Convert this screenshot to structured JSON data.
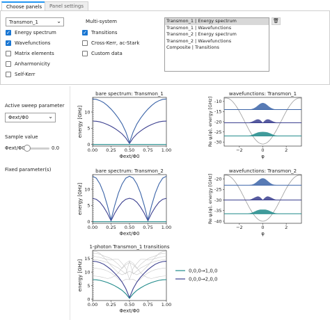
{
  "tabs": [
    {
      "label": "Choose panels"
    },
    {
      "label": "Panel settings"
    }
  ],
  "subsys_select": {
    "value": "Transmon_1"
  },
  "left_checks": [
    {
      "label": "Energy spectrum",
      "checked": true
    },
    {
      "label": "Wavefunctions",
      "checked": true
    },
    {
      "label": "Matrix elements",
      "checked": false
    },
    {
      "label": "Anharmonicity",
      "checked": false
    },
    {
      "label": "Self-Kerr",
      "checked": false
    }
  ],
  "multisystem": {
    "title": "Multi-system",
    "checks": [
      {
        "label": "Transitions",
        "checked": true
      },
      {
        "label": "Cross-Kerr, ac-Stark",
        "checked": false
      },
      {
        "label": "Custom data",
        "checked": false
      }
    ]
  },
  "panel_list": [
    "Transmon_1 | Energy spectrum",
    "Transmon_1 | Wavefunctions",
    "Transmon_2 | Energy spectrum",
    "Transmon_2 | Wavefunctions",
    "Composite | Transitions"
  ],
  "sidebar": {
    "sweep_label": "Active sweep parameter",
    "sweep_value": "Φext/Φ0",
    "sample_label": "Sample value",
    "slider_label": "Φext/Φ0",
    "slider_value": "0.0",
    "slider_fraction": 0,
    "fixed_label": "Fixed parameter(s)"
  },
  "plots": {
    "bare1": {
      "title": "bare spectrum: Transmon_1",
      "xlabel": "Φext/Φ0",
      "ylabel": "energy [GHz]"
    },
    "wave1": {
      "title": "wavefunctions: Transmon_1",
      "xlabel": "φ",
      "ylabel": "Re ψⱼ(φ),  energy [GHz]"
    },
    "bare2": {
      "title": "bare spectrum: Transmon_2",
      "xlabel": "Φext/Φ0",
      "ylabel": "energy [GHz]"
    },
    "wave2": {
      "title": "wavefunctions: Transmon_2",
      "xlabel": "φ",
      "ylabel": "Re ψⱼ(φ),  energy [GHz]"
    },
    "trans": {
      "title": "1-photon Transmon_1 transitions",
      "xlabel": "Φext/Φ0",
      "ylabel": "energy [GHz]"
    }
  },
  "legend": [
    {
      "label": "0,0,0→1,0,0",
      "color": "#1f8a8a"
    },
    {
      "label": "0,0,0→2,0,0",
      "color": "#3b3f8f"
    }
  ],
  "colors": {
    "accent": "#2196f3",
    "check": "#1976d2",
    "level0": "#1f8a8a",
    "level1": "#3b3f8f",
    "level2": "#3b64a8"
  },
  "chart_data": [
    {
      "type": "line",
      "title": "bare spectrum: Transmon_1",
      "xlabel": "Φext/Φ0",
      "ylabel": "energy [GHz]",
      "xlim": [
        0,
        1
      ],
      "ylim": [
        -0.5,
        14.5
      ],
      "xticks": [
        "0.00",
        "0.25",
        "0.50",
        "0.75",
        "1.00"
      ],
      "yticks": [
        "0",
        "5",
        "10"
      ],
      "x": [
        0,
        0.05,
        0.1,
        0.15,
        0.2,
        0.25,
        0.3,
        0.35,
        0.4,
        0.45,
        0.5,
        0.55,
        0.6,
        0.65,
        0.7,
        0.75,
        0.8,
        0.85,
        0.9,
        0.95,
        1
      ],
      "series": [
        {
          "values": [
            0,
            0,
            0,
            0,
            0,
            0,
            0,
            0,
            0,
            0,
            0,
            0,
            0,
            0,
            0,
            0,
            0,
            0,
            0,
            0,
            0
          ]
        },
        {
          "values": [
            7.2,
            7.15,
            6.95,
            6.6,
            6.15,
            5.6,
            4.95,
            4.15,
            3.25,
            2.0,
            0.3,
            2.0,
            3.25,
            4.15,
            4.95,
            5.6,
            6.15,
            6.6,
            6.95,
            7.15,
            7.2
          ]
        },
        {
          "values": [
            14.0,
            13.9,
            13.5,
            12.9,
            12.0,
            10.9,
            9.6,
            8.1,
            6.3,
            3.9,
            0.6,
            3.9,
            6.3,
            8.1,
            9.6,
            10.9,
            12.0,
            12.9,
            13.5,
            13.9,
            14.0
          ]
        }
      ]
    },
    {
      "type": "line",
      "title": "wavefunctions: Transmon_1",
      "xlabel": "φ",
      "ylabel": "Re ψⱼ(φ),  energy [GHz]",
      "xlim": [
        -3.3,
        3.3
      ],
      "ylim": [
        -32,
        -8
      ],
      "xticks": [
        "−2",
        "0",
        "2"
      ],
      "yticks": [
        "-10",
        "-15",
        "-20",
        "-25",
        "-30"
      ],
      "series": [
        {
          "name": "level 2",
          "baseline": -14
        },
        {
          "name": "level 1",
          "baseline": -20.5
        },
        {
          "name": "level 0",
          "baseline": -27
        }
      ]
    },
    {
      "type": "line",
      "title": "bare spectrum: Transmon_2",
      "xlabel": "Φext/Φ0",
      "ylabel": "energy [GHz]",
      "xlim": [
        0,
        1
      ],
      "ylim": [
        -0.5,
        14.5
      ],
      "xticks": [
        "0.00",
        "0.25",
        "0.50",
        "0.75",
        "1.00"
      ],
      "yticks": [
        "0",
        "5",
        "10"
      ],
      "x": [
        0,
        0.05,
        0.1,
        0.15,
        0.2,
        0.25,
        0.3,
        0.35,
        0.4,
        0.45,
        0.5,
        0.55,
        0.6,
        0.65,
        0.7,
        0.75,
        0.8,
        0.85,
        0.9,
        0.95,
        1
      ],
      "series": [
        {
          "values": [
            0,
            0,
            0,
            0,
            0,
            0,
            0,
            0,
            0,
            0,
            0,
            0,
            0,
            0,
            0,
            0,
            0,
            0,
            0,
            0,
            0
          ]
        },
        {
          "values": [
            7.2,
            6.9,
            6.0,
            4.5,
            2.6,
            0.3,
            2.6,
            4.5,
            6.0,
            6.9,
            7.2,
            6.9,
            6.0,
            4.5,
            2.6,
            0.3,
            2.6,
            4.5,
            6.0,
            6.9,
            7.2
          ]
        },
        {
          "values": [
            14.0,
            13.4,
            11.6,
            8.8,
            5.0,
            0.6,
            5.0,
            8.8,
            11.6,
            13.4,
            14.0,
            13.4,
            11.6,
            8.8,
            5.0,
            0.6,
            5.0,
            8.8,
            11.6,
            13.4,
            14.0
          ]
        }
      ]
    },
    {
      "type": "line",
      "title": "wavefunctions: Transmon_2",
      "xlabel": "φ",
      "ylabel": "Re ψⱼ(φ),  energy [GHz]",
      "xlim": [
        -3.3,
        3.3
      ],
      "ylim": [
        -41,
        -18
      ],
      "xticks": [
        "−2",
        "0",
        "2"
      ],
      "yticks": [
        "-20",
        "-25",
        "-30",
        "-35",
        "-40"
      ],
      "series": [
        {
          "name": "level 2",
          "baseline": -23
        },
        {
          "name": "level 1",
          "baseline": -30
        },
        {
          "name": "level 0",
          "baseline": -36.5
        }
      ]
    },
    {
      "type": "line",
      "title": "1-photon Transmon_1 transitions",
      "xlabel": "Φext/Φ0",
      "ylabel": "energy [GHz]",
      "xlim": [
        0,
        1
      ],
      "ylim": [
        -0.5,
        18
      ],
      "xticks": [
        "0.00",
        "0.25",
        "0.50",
        "0.75",
        "1.00"
      ],
      "yticks": [
        "0",
        "5",
        "10",
        "15"
      ],
      "x": [
        0,
        0.05,
        0.1,
        0.15,
        0.2,
        0.25,
        0.3,
        0.35,
        0.4,
        0.45,
        0.5,
        0.55,
        0.6,
        0.65,
        0.7,
        0.75,
        0.8,
        0.85,
        0.9,
        0.95,
        1
      ],
      "series": [
        {
          "name": "0,0,0→1,0,0",
          "values": [
            7.2,
            7.15,
            6.95,
            6.6,
            6.15,
            5.6,
            4.95,
            4.15,
            3.25,
            2.0,
            0.3,
            2.0,
            3.25,
            4.15,
            4.95,
            5.6,
            6.15,
            6.6,
            6.95,
            7.15,
            7.2
          ]
        },
        {
          "name": "0,0,0→2,0,0",
          "values": [
            14.0,
            13.9,
            13.5,
            12.9,
            12.0,
            10.9,
            9.6,
            8.1,
            6.3,
            3.9,
            0.6,
            3.9,
            6.3,
            8.1,
            9.6,
            10.9,
            12.0,
            12.9,
            13.5,
            13.9,
            14.0
          ]
        }
      ],
      "background_series": [
        {
          "values": [
            11.5,
            11.4,
            11.2,
            10.9,
            10.4,
            9.7,
            8.7,
            7.4,
            6.6,
            7.3,
            7.2,
            7.3,
            6.6,
            7.4,
            8.7,
            9.7,
            10.4,
            10.9,
            11.2,
            11.4,
            11.5
          ]
        },
        {
          "values": [
            14.6,
            14.5,
            14.3,
            14.0,
            13.5,
            12.9,
            12.2,
            11.5,
            10.4,
            9.3,
            14.0,
            9.3,
            10.4,
            11.5,
            12.2,
            12.9,
            13.5,
            14.0,
            14.3,
            14.5,
            14.6
          ]
        },
        {
          "values": [
            15.8,
            15.7,
            15.4,
            15.0,
            14.7,
            14.5,
            14.8,
            14.7,
            13.2,
            11.5,
            7.2,
            11.5,
            13.2,
            14.7,
            14.8,
            14.5,
            14.7,
            15.0,
            15.4,
            15.7,
            15.8
          ]
        },
        {
          "values": [
            17.0,
            16.9,
            16.6,
            16.0,
            15.5,
            15.0,
            14.0,
            12.8,
            11.3,
            12.7,
            13.5,
            12.7,
            11.3,
            12.8,
            14.0,
            15.0,
            15.5,
            16.0,
            16.6,
            16.9,
            17.0
          ]
        },
        {
          "values": [
            8.6,
            8.5,
            8.3,
            8.0,
            7.6,
            7.9,
            8.6,
            9.8,
            11.6,
            13.3,
            14.2,
            13.3,
            11.6,
            9.8,
            8.6,
            7.9,
            7.6,
            8.0,
            8.3,
            8.5,
            8.6
          ]
        },
        {
          "values": [
            17.8,
            17.6,
            16.9,
            15.5,
            14.0,
            12.4,
            11.0,
            9.7,
            9.0,
            9.6,
            10.3,
            9.6,
            9.0,
            9.7,
            11.0,
            12.4,
            14.0,
            15.5,
            16.9,
            17.6,
            17.8
          ]
        }
      ]
    }
  ]
}
